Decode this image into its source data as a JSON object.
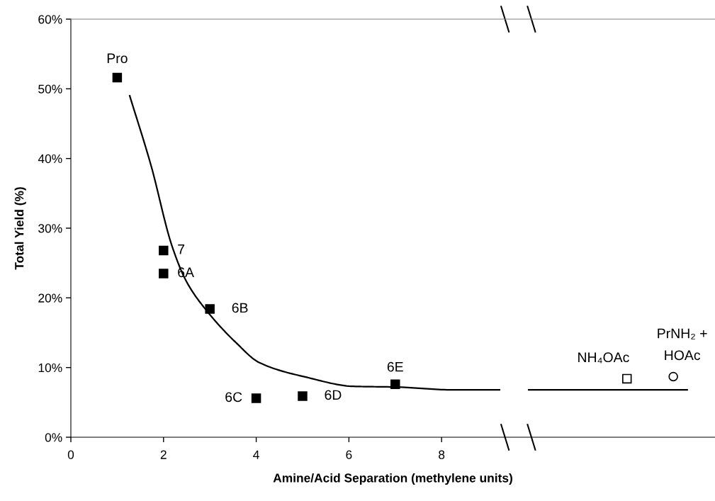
{
  "chart_data": {
    "type": "scatter",
    "xlabel": "Amine/Acid Separation (methylene units)",
    "ylabel": "Total Yield (%)",
    "series": [
      {
        "color": "#000000",
        "marker": "square",
        "x": [
          1,
          2,
          2,
          3,
          4,
          5,
          7
        ],
        "values": [
          51.6,
          26.8,
          23.5,
          18.4,
          5.6,
          5.9,
          7.6
        ]
      },
      {
        "color": "#ffffff",
        "marker": "square",
        "x": [
          12.0
        ],
        "values": [
          8.4
        ]
      },
      {
        "color": "#ffffff",
        "marker": "circle",
        "x": [
          13.0
        ],
        "values": [
          8.7
        ]
      },
      {
        "type": "line",
        "color": "#000000",
        "marker": "none",
        "x": [
          1.27,
          1.73,
          2.18,
          2.49,
          2.95,
          3.56,
          4.07,
          5.09,
          6.1,
          7.02,
          8.24,
          9.25
        ],
        "values": [
          49.0,
          39.0,
          27.5,
          22.4,
          18.0,
          13.6,
          10.7,
          8.6,
          7.3,
          7.2,
          6.8,
          6.8
        ]
      },
      {
        "type": "line",
        "color": "#000000",
        "marker": "none",
        "x": [
          9.88,
          13.3
        ],
        "values": [
          6.8,
          6.8
        ]
      }
    ],
    "annotations": [
      {
        "text": "Pro",
        "x": 1,
        "y": 51.6
      },
      {
        "text": "7",
        "x": 2,
        "y": 26.8
      },
      {
        "text": "6A",
        "x": 2,
        "y": 23.5
      },
      {
        "text": "6B",
        "x": 3,
        "y": 18.4
      },
      {
        "text": "6C",
        "x": 4,
        "y": 5.6
      },
      {
        "text": "6D",
        "x": 5,
        "y": 5.9
      },
      {
        "text": "6E",
        "x": 7,
        "y": 7.6
      },
      {
        "text": "NH₄OAc",
        "x": 12.0,
        "y": 8.4
      },
      {
        "text": "PrNH₂ +\nHOAc",
        "x": 13.0,
        "y": 8.7
      }
    ],
    "xlim": [
      0,
      13.9
    ],
    "xticks": [
      0,
      2,
      4,
      6,
      8
    ],
    "ylim": [
      0,
      60
    ],
    "yticks": [
      {
        "value": 0,
        "label": "0%"
      },
      {
        "value": 10,
        "label": "10%"
      },
      {
        "value": 20,
        "label": "20%"
      },
      {
        "value": 30,
        "label": "30%"
      },
      {
        "value": 40,
        "label": "40%"
      },
      {
        "value": 50,
        "label": "50%"
      },
      {
        "value": 60,
        "label": "60%"
      }
    ],
    "grid": false,
    "line_style": "solid"
  }
}
